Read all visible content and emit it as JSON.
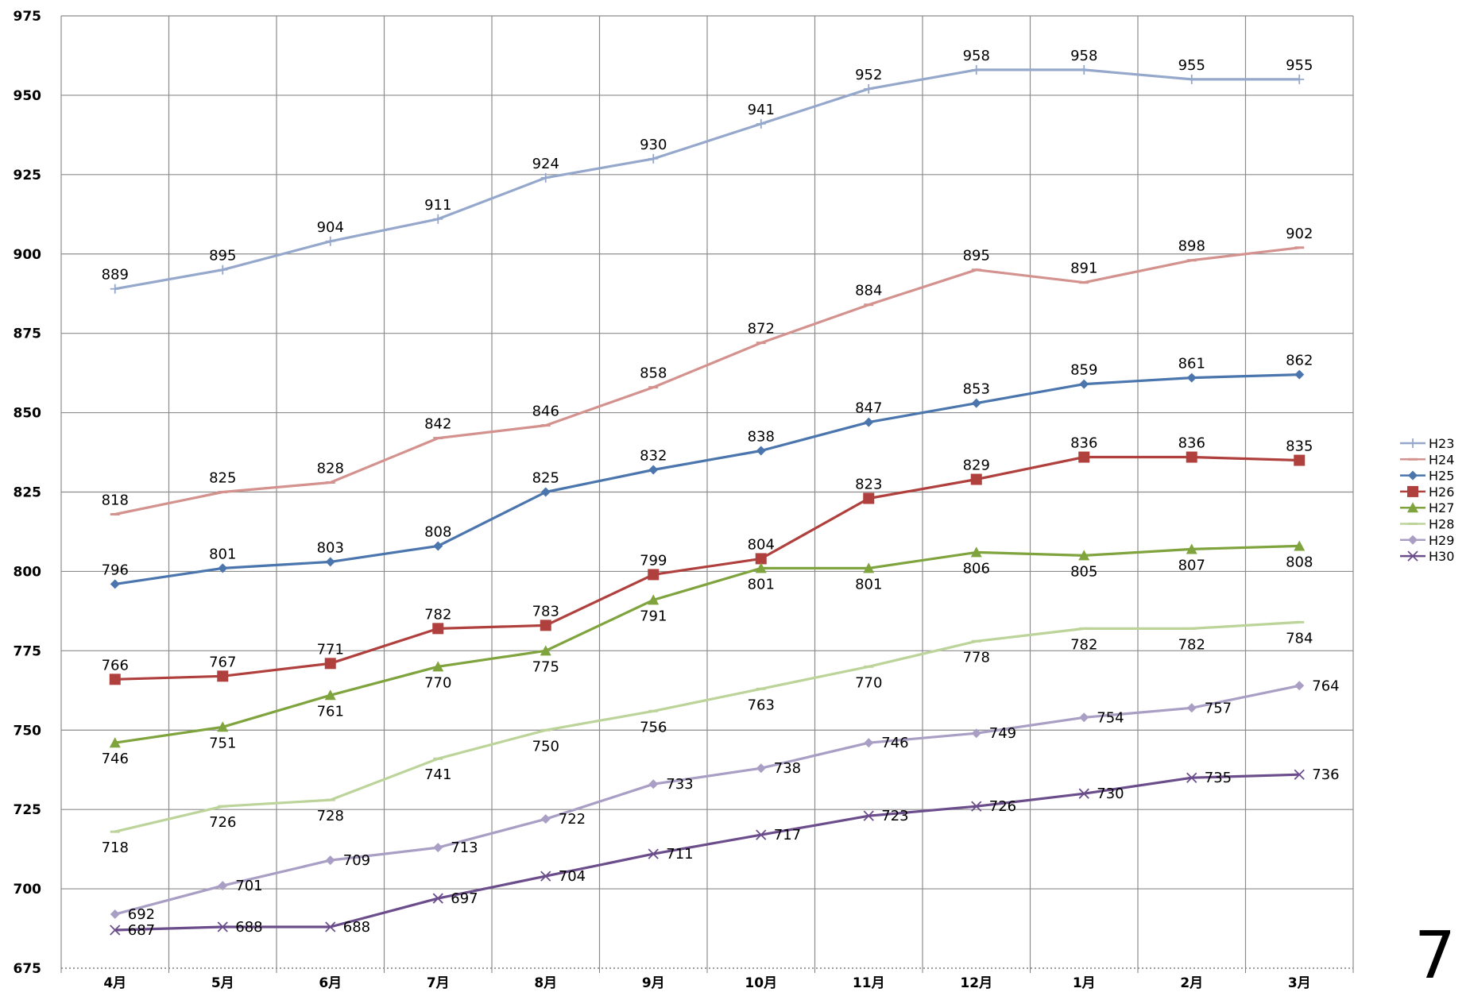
{
  "page_number": "7",
  "colors": {
    "H23": "#95a8cc",
    "H24": "#d4928f",
    "H25": "#4a75ad",
    "H26": "#b0403d",
    "H27": "#7fa33d",
    "H28": "#bcd49a",
    "H29": "#a99ec4",
    "H30": "#6b4d8c"
  },
  "chart_data": {
    "type": "line",
    "title": "",
    "xlabel": "",
    "ylabel": "",
    "categories": [
      "4月",
      "5月",
      "6月",
      "7月",
      "8月",
      "9月",
      "10月",
      "11月",
      "12月",
      "1月",
      "2月",
      "3月"
    ],
    "ylim": [
      675,
      975
    ],
    "yticks": [
      675,
      700,
      725,
      750,
      775,
      800,
      825,
      850,
      875,
      900,
      925,
      950,
      975
    ],
    "grid": true,
    "legend_position": "right",
    "series": [
      {
        "name": "H23",
        "marker": "plus",
        "label_pos": "above",
        "values": [
          889,
          895,
          904,
          911,
          924,
          930,
          941,
          952,
          958,
          958,
          955,
          955
        ]
      },
      {
        "name": "H24",
        "marker": "dash",
        "label_pos": "above",
        "values": [
          818,
          825,
          828,
          842,
          846,
          858,
          872,
          884,
          895,
          891,
          898,
          902
        ]
      },
      {
        "name": "H25",
        "marker": "diamond",
        "label_pos": "above",
        "values": [
          796,
          801,
          803,
          808,
          825,
          832,
          838,
          847,
          853,
          859,
          861,
          862
        ]
      },
      {
        "name": "H26",
        "marker": "square",
        "label_pos": "above",
        "values": [
          766,
          767,
          771,
          782,
          783,
          799,
          804,
          823,
          829,
          836,
          836,
          835
        ]
      },
      {
        "name": "H27",
        "marker": "triangle",
        "label_pos": "below",
        "values": [
          746,
          751,
          761,
          770,
          775,
          791,
          801,
          801,
          806,
          805,
          807,
          808
        ]
      },
      {
        "name": "H28",
        "marker": "dash",
        "label_pos": "below",
        "values": [
          718,
          726,
          728,
          741,
          750,
          756,
          763,
          770,
          778,
          782,
          782,
          784
        ]
      },
      {
        "name": "H29",
        "marker": "diamond",
        "label_pos": "right",
        "values": [
          692,
          701,
          709,
          713,
          722,
          733,
          738,
          746,
          749,
          754,
          757,
          764
        ]
      },
      {
        "name": "H30",
        "marker": "x",
        "label_pos": "right",
        "values": [
          687,
          688,
          688,
          697,
          704,
          711,
          717,
          723,
          726,
          730,
          735,
          736
        ]
      }
    ]
  }
}
